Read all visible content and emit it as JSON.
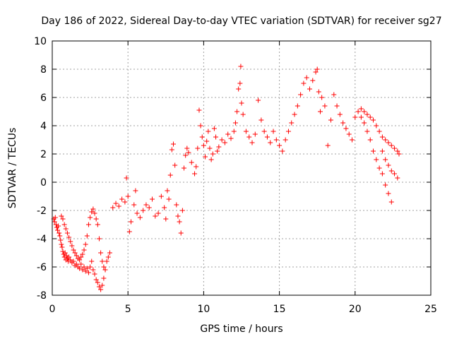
{
  "chart_data": {
    "type": "scatter",
    "title": "Day 186 of 2022, Sidereal Day-to-day VTEC variation (SDTVAR) for receiver sg27",
    "xlabel": "GPS time / hours",
    "ylabel": "SDTVAR / TECUs",
    "xlim": [
      0,
      25
    ],
    "ylim": [
      -8,
      10
    ],
    "grid": true,
    "x_ticks": [
      0,
      5,
      10,
      15,
      20,
      25
    ],
    "y_ticks": [
      -8,
      -6,
      -4,
      -2,
      0,
      2,
      4,
      6,
      8,
      10
    ],
    "marker": "+",
    "color": "#ff0000",
    "series": [
      {
        "name": "main trace",
        "points": [
          [
            0.1,
            -2.6
          ],
          [
            0.15,
            -2.8
          ],
          [
            0.2,
            -2.5
          ],
          [
            0.25,
            -3.0
          ],
          [
            0.3,
            -3.2
          ],
          [
            0.35,
            -3.4
          ],
          [
            0.4,
            -3.1
          ],
          [
            0.45,
            -3.6
          ],
          [
            0.5,
            -3.8
          ],
          [
            0.55,
            -4.1
          ],
          [
            0.6,
            -4.4
          ],
          [
            0.65,
            -4.6
          ],
          [
            0.7,
            -4.9
          ],
          [
            0.75,
            -5.1
          ],
          [
            0.8,
            -5.3
          ],
          [
            0.85,
            -5.0
          ],
          [
            0.9,
            -5.5
          ],
          [
            0.95,
            -5.2
          ],
          [
            1.0,
            -5.4
          ],
          [
            1.05,
            -5.6
          ],
          [
            1.1,
            -5.3
          ],
          [
            1.2,
            -5.5
          ],
          [
            1.3,
            -5.7
          ],
          [
            1.4,
            -5.6
          ],
          [
            1.5,
            -5.9
          ],
          [
            1.6,
            -5.8
          ],
          [
            1.7,
            -6.0
          ],
          [
            1.8,
            -6.1
          ],
          [
            1.9,
            -5.8
          ],
          [
            2.0,
            -6.2
          ],
          [
            2.1,
            -6.0
          ],
          [
            2.2,
            -6.3
          ],
          [
            2.3,
            -6.1
          ],
          [
            2.4,
            -6.4
          ],
          [
            2.5,
            -6.0
          ],
          [
            2.6,
            -5.6
          ],
          [
            2.7,
            -6.2
          ],
          [
            2.8,
            -6.5
          ],
          [
            2.9,
            -6.9
          ],
          [
            3.0,
            -7.1
          ],
          [
            3.1,
            -7.4
          ],
          [
            3.2,
            -7.6
          ],
          [
            3.3,
            -7.3
          ],
          [
            3.4,
            -6.8
          ],
          [
            3.5,
            -6.2
          ],
          [
            3.6,
            -5.6
          ],
          [
            3.7,
            -5.3
          ],
          [
            3.8,
            -5.0
          ]
        ]
      },
      {
        "name": "upper branch",
        "points": [
          [
            0.6,
            -2.4
          ],
          [
            0.7,
            -2.6
          ],
          [
            0.8,
            -3.0
          ],
          [
            0.9,
            -3.3
          ],
          [
            1.0,
            -3.6
          ],
          [
            1.1,
            -3.9
          ],
          [
            1.2,
            -4.2
          ],
          [
            1.3,
            -4.5
          ],
          [
            1.4,
            -4.8
          ],
          [
            1.5,
            -5.0
          ],
          [
            1.6,
            -5.2
          ],
          [
            1.7,
            -5.4
          ],
          [
            1.8,
            -5.5
          ],
          [
            1.9,
            -5.3
          ],
          [
            2.0,
            -5.1
          ],
          [
            2.1,
            -4.8
          ],
          [
            2.2,
            -4.4
          ],
          [
            2.3,
            -3.8
          ],
          [
            2.4,
            -3.0
          ],
          [
            2.5,
            -2.5
          ],
          [
            2.6,
            -2.1
          ],
          [
            2.7,
            -1.9
          ],
          [
            2.8,
            -2.2
          ],
          [
            2.9,
            -2.6
          ],
          [
            3.0,
            -3.0
          ],
          [
            3.1,
            -4.0
          ],
          [
            3.2,
            -5.0
          ],
          [
            3.3,
            -5.6
          ],
          [
            3.4,
            -6.0
          ],
          [
            3.5,
            -6.2
          ]
        ]
      },
      {
        "name": "mid segment",
        "points": [
          [
            4.0,
            -1.8
          ],
          [
            4.2,
            -1.5
          ],
          [
            4.4,
            -1.7
          ],
          [
            4.6,
            -1.2
          ],
          [
            4.8,
            -1.4
          ],
          [
            5.0,
            -1.0
          ],
          [
            4.9,
            0.3
          ],
          [
            5.1,
            -3.5
          ],
          [
            5.2,
            -2.8
          ],
          [
            5.4,
            -1.6
          ],
          [
            5.5,
            -0.6
          ],
          [
            5.6,
            -2.2
          ],
          [
            5.8,
            -2.5
          ],
          [
            6.0,
            -2.0
          ],
          [
            6.2,
            -1.6
          ],
          [
            6.4,
            -1.8
          ],
          [
            6.6,
            -1.2
          ],
          [
            6.8,
            -2.4
          ],
          [
            7.0,
            -2.2
          ],
          [
            7.2,
            -1.0
          ],
          [
            7.4,
            -1.8
          ],
          [
            7.5,
            -2.6
          ],
          [
            7.6,
            -0.6
          ],
          [
            7.7,
            -1.2
          ],
          [
            7.8,
            0.5
          ],
          [
            7.9,
            2.3
          ],
          [
            8.0,
            2.7
          ],
          [
            8.1,
            1.2
          ],
          [
            8.2,
            -1.6
          ],
          [
            8.3,
            -2.4
          ],
          [
            8.4,
            -2.8
          ],
          [
            8.5,
            -3.6
          ],
          [
            8.6,
            -2.0
          ],
          [
            8.7,
            1.0
          ],
          [
            8.8,
            1.9
          ],
          [
            8.9,
            2.4
          ],
          [
            9.0,
            2.1
          ],
          [
            9.2,
            1.4
          ],
          [
            9.4,
            0.6
          ],
          [
            9.5,
            1.1
          ]
        ]
      },
      {
        "name": "rise segment",
        "points": [
          [
            9.6,
            2.4
          ],
          [
            9.7,
            5.1
          ],
          [
            9.8,
            4.0
          ],
          [
            9.9,
            3.2
          ],
          [
            10.0,
            2.6
          ],
          [
            10.1,
            1.8
          ],
          [
            10.2,
            2.9
          ],
          [
            10.3,
            3.6
          ],
          [
            10.4,
            2.4
          ],
          [
            10.5,
            1.6
          ],
          [
            10.6,
            2.0
          ],
          [
            10.7,
            3.8
          ],
          [
            10.8,
            3.2
          ],
          [
            10.9,
            2.2
          ],
          [
            11.0,
            2.5
          ],
          [
            11.2,
            3.0
          ],
          [
            11.4,
            2.8
          ],
          [
            11.6,
            3.4
          ],
          [
            11.8,
            3.1
          ],
          [
            12.0,
            3.6
          ],
          [
            12.1,
            4.2
          ],
          [
            12.2,
            5.0
          ],
          [
            12.3,
            6.6
          ],
          [
            12.4,
            7.0
          ],
          [
            12.45,
            8.2
          ],
          [
            12.5,
            5.6
          ],
          [
            12.6,
            4.8
          ],
          [
            12.8,
            3.6
          ],
          [
            13.0,
            3.2
          ],
          [
            13.2,
            2.8
          ],
          [
            13.4,
            3.4
          ],
          [
            13.6,
            5.8
          ],
          [
            13.8,
            4.4
          ],
          [
            14.0,
            3.6
          ],
          [
            14.2,
            3.2
          ],
          [
            14.4,
            2.8
          ],
          [
            14.6,
            3.6
          ],
          [
            14.8,
            3.0
          ],
          [
            15.0,
            2.6
          ],
          [
            15.2,
            2.2
          ],
          [
            15.4,
            3.0
          ],
          [
            15.6,
            3.6
          ],
          [
            15.8,
            4.2
          ],
          [
            16.0,
            4.8
          ],
          [
            16.2,
            5.4
          ],
          [
            16.4,
            6.2
          ],
          [
            16.6,
            7.0
          ],
          [
            16.8,
            7.4
          ],
          [
            17.0,
            6.6
          ],
          [
            17.2,
            7.2
          ],
          [
            17.4,
            7.8
          ],
          [
            17.5,
            8.0
          ],
          [
            17.6,
            6.4
          ],
          [
            17.7,
            5.0
          ],
          [
            17.8,
            6.0
          ],
          [
            18.0,
            5.4
          ],
          [
            18.2,
            2.6
          ],
          [
            18.4,
            4.4
          ]
        ]
      },
      {
        "name": "end decline",
        "points": [
          [
            18.6,
            6.2
          ],
          [
            18.8,
            5.4
          ],
          [
            19.0,
            4.8
          ],
          [
            19.2,
            4.2
          ],
          [
            19.4,
            3.8
          ],
          [
            19.6,
            3.4
          ],
          [
            19.8,
            3.0
          ],
          [
            20.0,
            4.6
          ],
          [
            20.2,
            5.0
          ],
          [
            20.4,
            5.2
          ],
          [
            20.6,
            5.0
          ],
          [
            20.8,
            4.8
          ],
          [
            21.0,
            4.6
          ],
          [
            21.2,
            4.4
          ],
          [
            21.4,
            4.0
          ],
          [
            21.6,
            3.6
          ],
          [
            21.8,
            3.2
          ],
          [
            22.0,
            3.0
          ],
          [
            22.2,
            2.8
          ],
          [
            22.4,
            2.6
          ],
          [
            22.6,
            2.4
          ],
          [
            22.8,
            2.2
          ],
          [
            22.9,
            2.0
          ]
        ]
      },
      {
        "name": "lower end branch",
        "points": [
          [
            20.4,
            4.6
          ],
          [
            20.6,
            4.2
          ],
          [
            20.8,
            3.6
          ],
          [
            21.0,
            3.0
          ],
          [
            21.2,
            2.2
          ],
          [
            21.4,
            1.6
          ],
          [
            21.6,
            1.0
          ],
          [
            21.8,
            0.6
          ],
          [
            22.0,
            -0.2
          ],
          [
            22.2,
            -0.8
          ],
          [
            22.4,
            -1.4
          ],
          [
            21.8,
            2.2
          ],
          [
            22.0,
            1.6
          ],
          [
            22.2,
            1.2
          ],
          [
            22.4,
            0.8
          ],
          [
            22.6,
            0.6
          ],
          [
            22.8,
            0.3
          ]
        ]
      }
    ]
  }
}
